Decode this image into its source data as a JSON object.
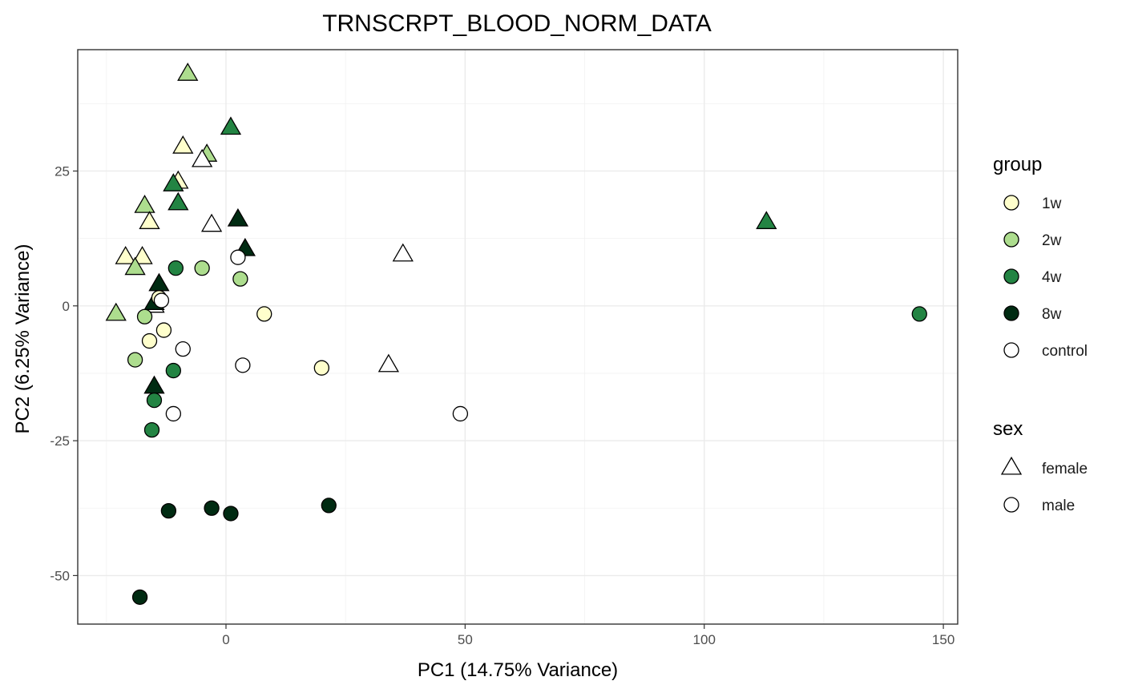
{
  "chart_data": {
    "type": "scatter",
    "title": "TRNSCRPT_BLOOD_NORM_DATA",
    "xlabel": "PC1 (14.75% Variance)",
    "ylabel": "PC2 (6.25% Variance)",
    "xlim": [
      -31,
      153
    ],
    "ylim": [
      -59,
      47.5
    ],
    "xticks": [
      0,
      50,
      100,
      150
    ],
    "yticks": [
      -50,
      -25,
      0,
      25
    ],
    "xtick_labels": [
      "0",
      "50",
      "100",
      "150"
    ],
    "ytick_labels": [
      "-50",
      "-25",
      "0",
      "25"
    ],
    "grid": true,
    "legend_position": "right",
    "legends": [
      {
        "title": "group",
        "entries": [
          {
            "label": "1w",
            "color": "#ffffcc"
          },
          {
            "label": "2w",
            "color": "#addd8e"
          },
          {
            "label": "4w",
            "color": "#238443"
          },
          {
            "label": "8w",
            "color": "#002b12"
          },
          {
            "label": "control",
            "color": "#ffffff"
          }
        ]
      },
      {
        "title": "sex",
        "entries": [
          {
            "label": "female",
            "shape": "triangle"
          },
          {
            "label": "male",
            "shape": "circle"
          }
        ]
      }
    ],
    "points": [
      {
        "x": -8,
        "y": 43,
        "group": "2w",
        "sex": "female"
      },
      {
        "x": 1,
        "y": 33,
        "group": "4w",
        "sex": "female"
      },
      {
        "x": -9,
        "y": 29.5,
        "group": "1w",
        "sex": "female"
      },
      {
        "x": -4,
        "y": 28,
        "group": "2w",
        "sex": "female"
      },
      {
        "x": -5,
        "y": 27,
        "group": "control",
        "sex": "female"
      },
      {
        "x": -10,
        "y": 23,
        "group": "1w",
        "sex": "female"
      },
      {
        "x": -11,
        "y": 22.5,
        "group": "4w",
        "sex": "female"
      },
      {
        "x": -10,
        "y": 19,
        "group": "4w",
        "sex": "female"
      },
      {
        "x": -17,
        "y": 18.5,
        "group": "2w",
        "sex": "female"
      },
      {
        "x": -16,
        "y": 15.5,
        "group": "1w",
        "sex": "female"
      },
      {
        "x": 2.5,
        "y": 16,
        "group": "8w",
        "sex": "female"
      },
      {
        "x": -3,
        "y": 15,
        "group": "control",
        "sex": "female"
      },
      {
        "x": 113,
        "y": 15.5,
        "group": "4w",
        "sex": "female"
      },
      {
        "x": 4,
        "y": 10.5,
        "group": "8w",
        "sex": "female"
      },
      {
        "x": 37,
        "y": 9.5,
        "group": "control",
        "sex": "female"
      },
      {
        "x": -21,
        "y": 9,
        "group": "1w",
        "sex": "female"
      },
      {
        "x": -17.5,
        "y": 9,
        "group": "1w",
        "sex": "female"
      },
      {
        "x": -19,
        "y": 7,
        "group": "2w",
        "sex": "female"
      },
      {
        "x": -14,
        "y": 4,
        "group": "8w",
        "sex": "female"
      },
      {
        "x": -15,
        "y": 0,
        "group": "control",
        "sex": "female"
      },
      {
        "x": -15,
        "y": 0.5,
        "group": "8w",
        "sex": "female"
      },
      {
        "x": -23,
        "y": -1.5,
        "group": "2w",
        "sex": "female"
      },
      {
        "x": 34,
        "y": -11,
        "group": "control",
        "sex": "female"
      },
      {
        "x": -15,
        "y": -15,
        "group": "8w",
        "sex": "female"
      },
      {
        "x": 2.5,
        "y": 9,
        "group": "control",
        "sex": "male"
      },
      {
        "x": -10.5,
        "y": 7,
        "group": "4w",
        "sex": "male"
      },
      {
        "x": -5,
        "y": 7,
        "group": "2w",
        "sex": "male"
      },
      {
        "x": 3,
        "y": 5,
        "group": "2w",
        "sex": "male"
      },
      {
        "x": -14,
        "y": 1.5,
        "group": "1w",
        "sex": "male"
      },
      {
        "x": -13.5,
        "y": 1,
        "group": "control",
        "sex": "male"
      },
      {
        "x": 8,
        "y": -1.5,
        "group": "1w",
        "sex": "male"
      },
      {
        "x": 145,
        "y": -1.5,
        "group": "4w",
        "sex": "male"
      },
      {
        "x": -17,
        "y": -2,
        "group": "2w",
        "sex": "male"
      },
      {
        "x": -13,
        "y": -4.5,
        "group": "1w",
        "sex": "male"
      },
      {
        "x": -16,
        "y": -6.5,
        "group": "1w",
        "sex": "male"
      },
      {
        "x": -9,
        "y": -8,
        "group": "control",
        "sex": "male"
      },
      {
        "x": -19,
        "y": -10,
        "group": "2w",
        "sex": "male"
      },
      {
        "x": 3.5,
        "y": -11,
        "group": "control",
        "sex": "male"
      },
      {
        "x": 20,
        "y": -11.5,
        "group": "1w",
        "sex": "male"
      },
      {
        "x": -11,
        "y": -12,
        "group": "4w",
        "sex": "male"
      },
      {
        "x": -15,
        "y": -17.5,
        "group": "4w",
        "sex": "male"
      },
      {
        "x": -11,
        "y": -20,
        "group": "control",
        "sex": "male"
      },
      {
        "x": 49,
        "y": -20,
        "group": "control",
        "sex": "male"
      },
      {
        "x": -15.5,
        "y": -23,
        "group": "4w",
        "sex": "male"
      },
      {
        "x": 21.5,
        "y": -37,
        "group": "8w",
        "sex": "male"
      },
      {
        "x": -3,
        "y": -37.5,
        "group": "8w",
        "sex": "male"
      },
      {
        "x": -12,
        "y": -38,
        "group": "8w",
        "sex": "male"
      },
      {
        "x": 1,
        "y": -38.5,
        "group": "8w",
        "sex": "male"
      },
      {
        "x": -18,
        "y": -54,
        "group": "8w",
        "sex": "male"
      }
    ]
  }
}
